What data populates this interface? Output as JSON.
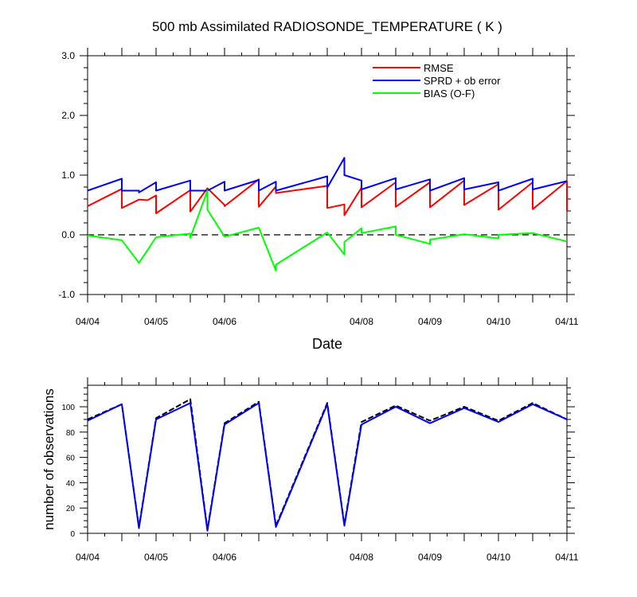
{
  "chart_data": [
    {
      "type": "line",
      "title": "500 mb Assimilated RADIOSONDE_TEMPERATURE ( K )",
      "xlabel": "Date",
      "ylabel": "",
      "ylim": [
        -1.0,
        3.0
      ],
      "xlim": [
        "04/04 00Z",
        "04/11 00Z"
      ],
      "x_ticks": [
        "04/04",
        "04/05",
        "04/06",
        "04/08",
        "04/09",
        "04/10",
        "04/11"
      ],
      "y_ticks": [
        "-1.0",
        "0.0",
        "1.0",
        "2.0",
        "3.0"
      ],
      "legend_position": "top-right",
      "reference_line": {
        "y": 0.0,
        "style": "dashed"
      },
      "series": [
        {
          "name": "RMSE",
          "color": "#ff0000",
          "points": [
            [
              "04/04 00Z",
              0.48
            ],
            [
              "04/04 12Z",
              0.77
            ],
            [
              "04/04 12Z",
              0.45
            ],
            [
              "04/04 18Z",
              0.59
            ],
            [
              "04/04 21Z",
              0.58
            ],
            [
              "04/05 00Z",
              0.66
            ],
            [
              "04/05 00Z",
              0.36
            ],
            [
              "04/05 12Z",
              0.75
            ],
            [
              "04/05 12Z",
              0.39
            ],
            [
              "04/05 18Z",
              0.78
            ],
            [
              "04/06 00Z",
              0.5
            ],
            [
              "04/06 00Z",
              0.48
            ],
            [
              "04/06 12Z",
              0.93
            ],
            [
              "04/06 12Z",
              0.47
            ],
            [
              "04/06 18Z",
              0.81
            ],
            [
              "04/06 18Z",
              0.7
            ],
            [
              "04/07 12Z",
              0.82
            ],
            [
              "04/07 12Z",
              0.45
            ],
            [
              "04/07 18Z",
              0.51
            ],
            [
              "04/07 18Z",
              0.33
            ],
            [
              "04/08 00Z",
              0.79
            ],
            [
              "04/08 00Z",
              0.46
            ],
            [
              "04/08 12Z",
              0.88
            ],
            [
              "04/08 12Z",
              0.47
            ],
            [
              "04/09 00Z",
              0.88
            ],
            [
              "04/09 00Z",
              0.46
            ],
            [
              "04/09 12Z",
              0.91
            ],
            [
              "04/09 12Z",
              0.5
            ],
            [
              "04/10 00Z",
              0.85
            ],
            [
              "04/10 00Z",
              0.42
            ],
            [
              "04/10 12Z",
              0.88
            ],
            [
              "04/10 12Z",
              0.43
            ],
            [
              "04/11 00Z",
              0.9
            ],
            [
              "04/11 00Z",
              0.4
            ]
          ]
        },
        {
          "name": "SPRD + ob error",
          "color": "#0000ff",
          "points": [
            [
              "04/04 00Z",
              0.74
            ],
            [
              "04/04 12Z",
              0.94
            ],
            [
              "04/04 12Z",
              0.74
            ],
            [
              "04/04 18Z",
              0.74
            ],
            [
              "04/04 18Z",
              0.71
            ],
            [
              "04/05 00Z",
              0.88
            ],
            [
              "04/05 00Z",
              0.74
            ],
            [
              "04/05 12Z",
              0.91
            ],
            [
              "04/05 12Z",
              0.74
            ],
            [
              "04/05 18Z",
              0.74
            ],
            [
              "04/06 00Z",
              0.89
            ],
            [
              "04/06 00Z",
              0.74
            ],
            [
              "04/06 12Z",
              0.92
            ],
            [
              "04/06 12Z",
              0.74
            ],
            [
              "04/06 18Z",
              0.89
            ],
            [
              "04/06 18Z",
              0.74
            ],
            [
              "04/07 12Z",
              0.98
            ],
            [
              "04/07 12Z",
              0.79
            ],
            [
              "04/07 18Z",
              1.29
            ],
            [
              "04/07 18Z",
              1.0
            ],
            [
              "04/08 00Z",
              0.91
            ],
            [
              "04/08 00Z",
              0.76
            ],
            [
              "04/08 12Z",
              0.95
            ],
            [
              "04/08 12Z",
              0.76
            ],
            [
              "04/09 00Z",
              0.93
            ],
            [
              "04/09 00Z",
              0.74
            ],
            [
              "04/09 12Z",
              0.95
            ],
            [
              "04/09 12Z",
              0.76
            ],
            [
              "04/10 00Z",
              0.88
            ],
            [
              "04/10 00Z",
              0.74
            ],
            [
              "04/10 12Z",
              0.94
            ],
            [
              "04/10 12Z",
              0.76
            ],
            [
              "04/11 00Z",
              0.9
            ]
          ]
        },
        {
          "name": "BIAS (O-F)",
          "color": "#00ff00",
          "points": [
            [
              "04/04 00Z",
              -0.01
            ],
            [
              "04/04 12Z",
              -0.09
            ],
            [
              "04/04 18Z",
              -0.47
            ],
            [
              "04/05 00Z",
              -0.04
            ],
            [
              "04/05 12Z",
              0.02
            ],
            [
              "04/05 12Z",
              -0.05
            ],
            [
              "04/05 18Z",
              0.74
            ],
            [
              "04/05 18Z",
              0.42
            ],
            [
              "04/06 00Z",
              -0.03
            ],
            [
              "04/06 12Z",
              0.12
            ],
            [
              "04/06 18Z",
              -0.6
            ],
            [
              "04/06 18Z",
              -0.5
            ],
            [
              "04/07 12Z",
              0.04
            ],
            [
              "04/07 18Z",
              -0.33
            ],
            [
              "04/07 18Z",
              -0.12
            ],
            [
              "04/08 00Z",
              0.11
            ],
            [
              "04/08 00Z",
              0.03
            ],
            [
              "04/08 12Z",
              0.14
            ],
            [
              "04/08 12Z",
              0.0
            ],
            [
              "04/09 00Z",
              -0.15
            ],
            [
              "04/09 00Z",
              -0.08
            ],
            [
              "04/09 12Z",
              0.01
            ],
            [
              "04/10 00Z",
              -0.06
            ],
            [
              "04/10 00Z",
              0.0
            ],
            [
              "04/10 12Z",
              0.03
            ],
            [
              "04/11 00Z",
              -0.11
            ]
          ]
        }
      ]
    },
    {
      "type": "line",
      "title": "",
      "xlabel": "",
      "ylabel": "number of observations",
      "ylim": [
        0,
        117
      ],
      "xlim": [
        "04/04 00Z",
        "04/11 00Z"
      ],
      "x_ticks": [
        "04/04",
        "04/05",
        "04/06",
        "04/08",
        "04/09",
        "04/10",
        "04/11"
      ],
      "y_ticks": [
        "0",
        "20",
        "40",
        "60",
        "80",
        "100"
      ],
      "series": [
        {
          "color": "#000000",
          "style": "dashed",
          "points": [
            [
              "04/04 00Z",
              90
            ],
            [
              "04/04 12Z",
              102
            ],
            [
              "04/04 18Z",
              5
            ],
            [
              "04/05 00Z",
              91
            ],
            [
              "04/05 12Z",
              106
            ],
            [
              "04/05 18Z",
              3
            ],
            [
              "04/06 00Z",
              87
            ],
            [
              "04/06 12Z",
              104
            ],
            [
              "04/06 18Z",
              6
            ],
            [
              "04/07 12Z",
              103
            ],
            [
              "04/07 18Z",
              7
            ],
            [
              "04/08 00Z",
              88
            ],
            [
              "04/08 12Z",
              101
            ],
            [
              "04/09 00Z",
              89
            ],
            [
              "04/09 12Z",
              100
            ],
            [
              "04/10 00Z",
              89
            ],
            [
              "04/10 12Z",
              103
            ],
            [
              "04/11 00Z",
              90
            ]
          ]
        },
        {
          "color": "#0000ff",
          "style": "solid",
          "points": [
            [
              "04/04 00Z",
              89
            ],
            [
              "04/04 12Z",
              102
            ],
            [
              "04/04 18Z",
              4
            ],
            [
              "04/05 00Z",
              90
            ],
            [
              "04/05 12Z",
              103
            ],
            [
              "04/05 18Z",
              2
            ],
            [
              "04/06 00Z",
              86
            ],
            [
              "04/06 12Z",
              103
            ],
            [
              "04/06 18Z",
              5
            ],
            [
              "04/07 12Z",
              102
            ],
            [
              "04/07 18Z",
              6
            ],
            [
              "04/08 00Z",
              86
            ],
            [
              "04/08 12Z",
              100
            ],
            [
              "04/09 00Z",
              87
            ],
            [
              "04/09 12Z",
              99
            ],
            [
              "04/10 00Z",
              88
            ],
            [
              "04/10 12Z",
              102
            ],
            [
              "04/11 00Z",
              90
            ]
          ]
        }
      ]
    }
  ],
  "colors": {
    "axis": "#000000",
    "zero_line": "#000000"
  }
}
